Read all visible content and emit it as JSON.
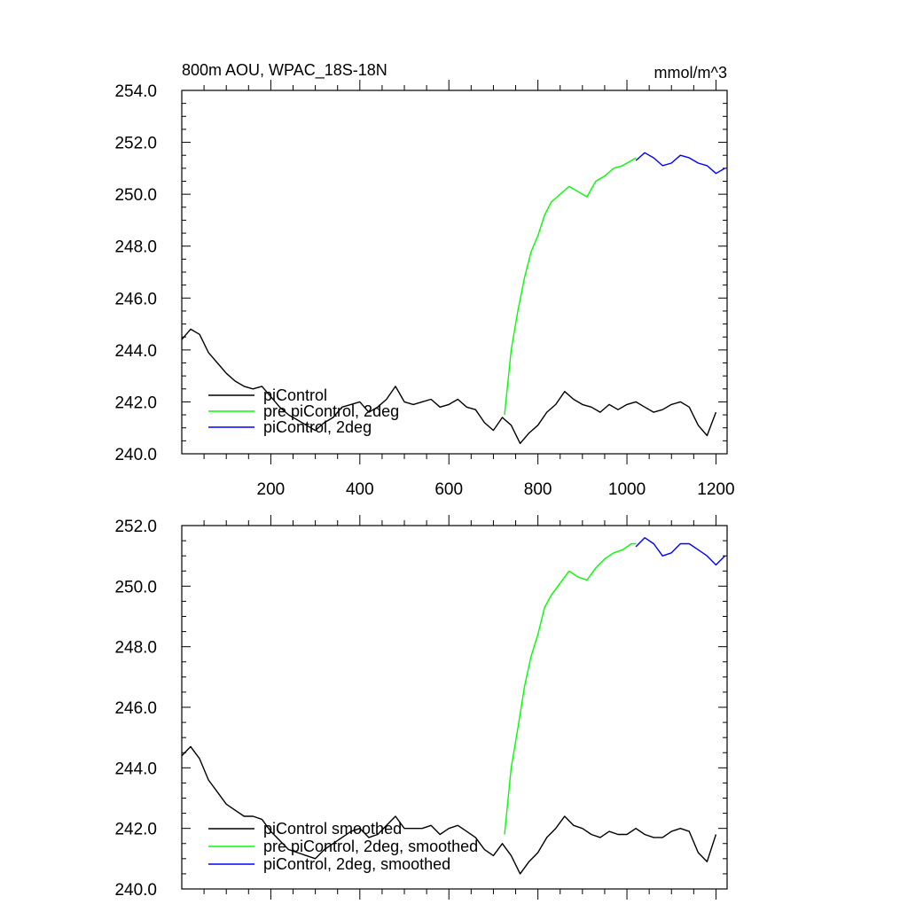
{
  "chart_data": [
    {
      "type": "line",
      "title": "800m AOU, WPAC_18S-18N",
      "units": "mmol/m^3",
      "xlim": [
        0,
        1225
      ],
      "ylim": [
        240,
        254
      ],
      "yticks": [
        "240.0",
        "242.0",
        "244.0",
        "246.0",
        "248.0",
        "250.0",
        "252.0",
        "254.0"
      ],
      "xticks": [
        "200",
        "400",
        "600",
        "800",
        "1000",
        "1200"
      ],
      "legend_position": "bottom-left",
      "series": [
        {
          "name": "piControl",
          "color": "#000000",
          "x": [
            0,
            20,
            40,
            60,
            80,
            100,
            120,
            140,
            160,
            180,
            200,
            220,
            240,
            260,
            280,
            300,
            320,
            340,
            360,
            380,
            400,
            420,
            440,
            460,
            480,
            500,
            520,
            540,
            560,
            580,
            600,
            620,
            640,
            660,
            680,
            700,
            720,
            740,
            760,
            780,
            800,
            820,
            840,
            860,
            880,
            900,
            920,
            940,
            960,
            980,
            1000,
            1020,
            1040,
            1060,
            1080,
            1100,
            1120,
            1140,
            1160,
            1180,
            1200
          ],
          "y": [
            244.4,
            244.8,
            244.6,
            243.9,
            243.5,
            243.1,
            242.8,
            242.6,
            242.5,
            242.6,
            242.2,
            241.8,
            241.5,
            241.3,
            241.1,
            240.9,
            241.2,
            241.4,
            241.8,
            241.9,
            242.0,
            241.6,
            241.8,
            242.1,
            242.6,
            242.0,
            241.9,
            242.0,
            242.1,
            241.8,
            241.9,
            242.1,
            241.8,
            241.7,
            241.2,
            240.9,
            241.4,
            241.1,
            240.4,
            240.8,
            241.1,
            241.6,
            241.9,
            242.4,
            242.1,
            241.9,
            241.8,
            241.6,
            241.9,
            241.7,
            241.9,
            242.0,
            241.8,
            241.6,
            241.7,
            241.9,
            242.0,
            241.8,
            241.1,
            240.7,
            241.6
          ]
        },
        {
          "name": "pre piControl, 2deg",
          "color": "#00ff00",
          "x": [
            725,
            740,
            755,
            770,
            785,
            800,
            815,
            830,
            850,
            870,
            890,
            910,
            930,
            950,
            970,
            990,
            1010,
            1020
          ],
          "y": [
            241.5,
            244.0,
            245.5,
            246.8,
            247.8,
            248.4,
            249.2,
            249.7,
            250.0,
            250.3,
            250.1,
            249.9,
            250.5,
            250.7,
            251.0,
            251.1,
            251.3,
            251.4
          ]
        },
        {
          "name": "piControl, 2deg",
          "color": "#0000ff",
          "x": [
            1020,
            1040,
            1060,
            1080,
            1100,
            1120,
            1140,
            1160,
            1180,
            1200,
            1220
          ],
          "y": [
            251.3,
            251.6,
            251.4,
            251.1,
            251.2,
            251.5,
            251.4,
            251.2,
            251.1,
            250.8,
            251.0
          ]
        }
      ]
    },
    {
      "type": "line",
      "xlim": [
        0,
        1225
      ],
      "ylim": [
        240,
        252
      ],
      "yticks": [
        "240.0",
        "242.0",
        "244.0",
        "246.0",
        "248.0",
        "250.0",
        "252.0"
      ],
      "legend_position": "bottom-left",
      "series": [
        {
          "name": "piControl smoothed",
          "color": "#000000",
          "x": [
            0,
            20,
            40,
            60,
            80,
            100,
            120,
            140,
            160,
            180,
            200,
            220,
            240,
            260,
            280,
            300,
            320,
            340,
            360,
            380,
            400,
            420,
            440,
            460,
            480,
            500,
            520,
            540,
            560,
            580,
            600,
            620,
            640,
            660,
            680,
            700,
            720,
            740,
            760,
            780,
            800,
            820,
            840,
            860,
            880,
            900,
            920,
            940,
            960,
            980,
            1000,
            1020,
            1040,
            1060,
            1080,
            1100,
            1120,
            1140,
            1160,
            1180,
            1200
          ],
          "y": [
            244.4,
            244.7,
            244.3,
            243.6,
            243.2,
            242.8,
            242.6,
            242.4,
            242.4,
            242.3,
            241.9,
            241.6,
            241.3,
            241.2,
            241.1,
            241.0,
            241.3,
            241.5,
            241.7,
            241.9,
            242.0,
            241.7,
            241.8,
            242.1,
            242.4,
            242.0,
            242.0,
            242.0,
            242.1,
            241.8,
            242.0,
            242.1,
            241.9,
            241.7,
            241.3,
            241.1,
            241.5,
            241.1,
            240.5,
            240.9,
            241.2,
            241.7,
            242.0,
            242.4,
            242.1,
            242.0,
            241.8,
            241.7,
            241.9,
            241.8,
            241.8,
            242.0,
            241.8,
            241.7,
            241.7,
            241.9,
            242.0,
            241.9,
            241.2,
            240.9,
            241.8
          ]
        },
        {
          "name": "pre piControl, 2deg, smoothed",
          "color": "#00ff00",
          "x": [
            725,
            740,
            755,
            770,
            785,
            800,
            815,
            830,
            850,
            870,
            890,
            910,
            930,
            950,
            970,
            990,
            1010,
            1020
          ],
          "y": [
            241.8,
            244.0,
            245.3,
            246.7,
            247.7,
            248.4,
            249.3,
            249.7,
            250.1,
            250.5,
            250.3,
            250.2,
            250.6,
            250.9,
            251.1,
            251.2,
            251.4,
            251.4
          ]
        },
        {
          "name": "piControl, 2deg, smoothed",
          "color": "#0000ff",
          "x": [
            1020,
            1040,
            1060,
            1080,
            1100,
            1120,
            1140,
            1160,
            1180,
            1200,
            1220
          ],
          "y": [
            251.3,
            251.6,
            251.4,
            251.0,
            251.1,
            251.4,
            251.4,
            251.2,
            251.0,
            250.7,
            251.0
          ]
        }
      ]
    }
  ]
}
